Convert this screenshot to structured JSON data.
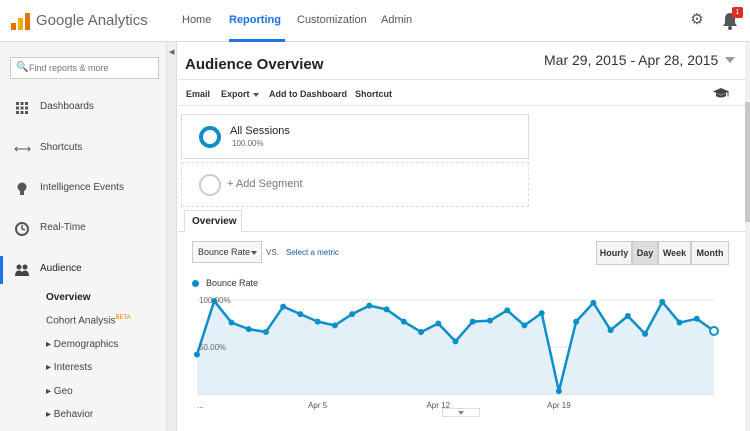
{
  "app": {
    "name": "Google Analytics"
  },
  "nav": {
    "items": [
      "Home",
      "Reporting",
      "Customization",
      "Admin"
    ],
    "active": "Reporting",
    "notification_count": "1"
  },
  "sidebar": {
    "search_placeholder": "Find reports & more",
    "items": [
      {
        "label": "Dashboards",
        "icon": "grid-icon"
      },
      {
        "label": "Shortcuts",
        "icon": "arrows-icon"
      },
      {
        "label": "Intelligence Events",
        "icon": "bulb-icon"
      },
      {
        "label": "Real-Time",
        "icon": "clock-icon"
      },
      {
        "label": "Audience",
        "icon": "people-icon"
      }
    ],
    "audience_sub": [
      {
        "label": "Overview"
      },
      {
        "label": "Cohort Analysis",
        "badge": "BETA"
      },
      {
        "label": "▸ Demographics"
      },
      {
        "label": "▸ Interests"
      },
      {
        "label": "▸ Geo"
      },
      {
        "label": "▸ Behavior"
      }
    ]
  },
  "main": {
    "title": "Audience Overview",
    "date_range": "Mar 29, 2015 - Apr 28, 2015",
    "toolbar": {
      "email": "Email",
      "export": "Export",
      "add_to_dashboard": "Add to Dashboard",
      "shortcut": "Shortcut"
    },
    "segments": {
      "all_sessions": "All Sessions",
      "all_sessions_pct": "100.00%",
      "add_segment": "+ Add Segment"
    },
    "tab": "Overview",
    "metric_select": "Bounce Rate",
    "vs": "VS.",
    "select_metric": "Select a metric",
    "granularity": [
      "Hourly",
      "Day",
      "Week",
      "Month"
    ],
    "granularity_active": "Day"
  },
  "chart_data": {
    "type": "area",
    "series": [
      {
        "name": "Bounce Rate",
        "color": "#0a8fc8",
        "values": [
          42,
          99,
          76,
          69,
          66,
          93,
          85,
          77,
          73,
          85,
          94,
          90,
          77,
          66,
          75,
          56,
          77,
          78,
          89,
          73,
          86,
          3,
          77,
          97,
          68,
          83,
          64,
          98,
          76,
          80,
          67
        ]
      }
    ],
    "y_tick_labels": [
      "100.00%",
      "50.00%"
    ],
    "y_tick_values": [
      100,
      50
    ],
    "x_tick_labels": [
      "...",
      "Apr 5",
      "Apr 12",
      "Apr 19"
    ],
    "x_tick_index": [
      0,
      7,
      14,
      21
    ],
    "ylim": [
      0,
      100
    ]
  }
}
